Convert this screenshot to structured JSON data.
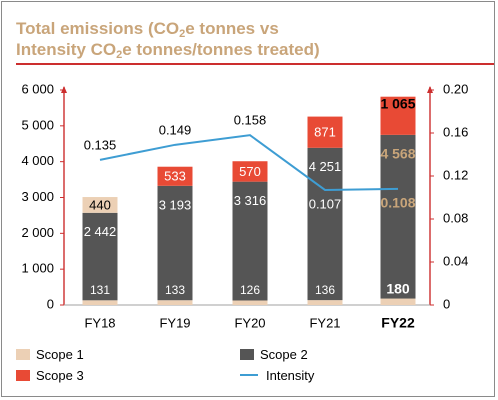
{
  "title": {
    "line1_a": "Total emissions (CO",
    "line1_sub": "2",
    "line1_b": "e tonnes vs",
    "line2_a": "Intensity CO",
    "line2_sub": "2",
    "line2_b": "e tonnes/tonnes treated)"
  },
  "colors": {
    "title": "#c9a57a",
    "rule": "#cc2e2e",
    "axis": "#cc2e2e",
    "scope1": "#ecd0b5",
    "scope2": "#555555",
    "scope3": "#e84a35",
    "intensity": "#3e9dd3",
    "scope1_label_on_bar": "#c9a57a",
    "fy22_highlight": "#c9a57a"
  },
  "chart_data": {
    "type": "bar",
    "stacked": true,
    "categories": [
      "FY18",
      "FY19",
      "FY20",
      "FY21",
      "FY22"
    ],
    "highlight_category": "FY22",
    "series": [
      {
        "name": "Scope 1",
        "values": [
          131,
          133,
          126,
          136,
          180
        ],
        "axis": "left"
      },
      {
        "name": "Scope 2",
        "values": [
          2442,
          3193,
          3316,
          4251,
          4568
        ],
        "axis": "left"
      },
      {
        "name": "Scope 3",
        "values": [
          440,
          533,
          570,
          871,
          1065
        ],
        "axis": "left"
      },
      {
        "name": "Intensity",
        "type": "line",
        "values": [
          0.135,
          0.149,
          0.158,
          0.107,
          0.108
        ],
        "axis": "right"
      }
    ],
    "value_labels": {
      "scope1": [
        "131",
        "133",
        "126",
        "136",
        "180"
      ],
      "scope2": [
        "2 442",
        "3 193",
        "3 316",
        "4 251",
        "4 568"
      ],
      "scope3": [
        "440",
        "533",
        "570",
        "871",
        "1 065"
      ],
      "intensity": [
        "0.135",
        "0.149",
        "0.158",
        "0.107",
        "0.108"
      ]
    },
    "y_left": {
      "min": 0,
      "max": 6000,
      "ticks": [
        0,
        1000,
        2000,
        3000,
        4000,
        5000,
        6000
      ],
      "tick_labels": [
        "0",
        "1 000",
        "2 000",
        "3 000",
        "4 000",
        "5 000",
        "6 000"
      ]
    },
    "y_right": {
      "min": 0,
      "max": 0.2,
      "ticks": [
        0,
        0.04,
        0.08,
        0.12,
        0.16,
        0.2
      ],
      "tick_labels": [
        "0",
        "0.04",
        "0.08",
        "0.12",
        "0.16",
        "0.20"
      ]
    },
    "grid": false,
    "legend_position": "bottom"
  },
  "legend": {
    "scope1": "Scope 1",
    "scope2": "Scope 2",
    "scope3": "Scope 3",
    "intensity": "Intensity"
  }
}
